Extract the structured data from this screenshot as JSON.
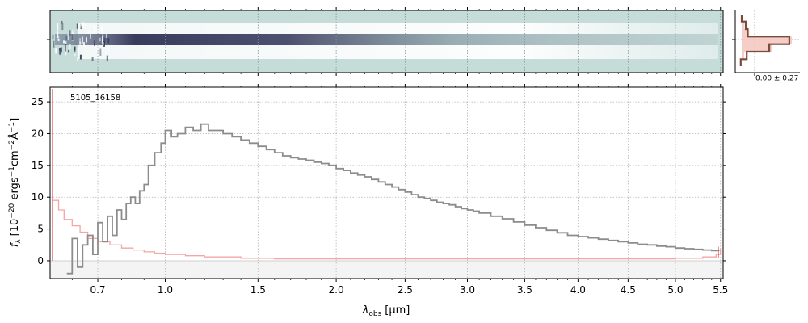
{
  "chart_data": [
    {
      "panel": "2d-spectrum",
      "type": "heatmap",
      "colormap": "bone_r",
      "background_color": "#c5dcd9",
      "trace_color": "#3a3d5e",
      "xlim": [
        0.6,
        5.5
      ]
    },
    {
      "panel": "cross-dispersion-profile",
      "type": "line",
      "annotation": "0.00 ± 0.27",
      "profile_color": "#7a4a3a",
      "fill_color": "#f5c6be",
      "y_offsets": [
        -3,
        -2,
        -1,
        0,
        1,
        2,
        3
      ],
      "model_profile": [
        0.02,
        0.05,
        0.15,
        1.0,
        0.6,
        0.05,
        0.0
      ],
      "data_profile": [
        0.0,
        0.08,
        0.12,
        0.95,
        0.55,
        0.1,
        -0.02
      ]
    },
    {
      "panel": "1d-spectrum",
      "type": "line",
      "object_label": "5105_16158",
      "xlabel_main": "λ",
      "xlabel_sub": "obs",
      "xlabel_unit": "[μm]",
      "ylabel": "f_λ [10^-20 ergs^-1 cm^-2 Å^-1]",
      "ylabel_parts": {
        "sym": "f",
        "sym_sub": "λ",
        "pre": "[10",
        "exp1": "−20",
        "mid1": " ergs",
        "exp2": "−1",
        "mid2": "cm",
        "exp3": "−2",
        "mid3": "Å",
        "exp4": "−1",
        "post": "]"
      },
      "xscale": "sqrt",
      "xlim": [
        0.52,
        5.53
      ],
      "ylim": [
        -2.8,
        27.3
      ],
      "xticks": [
        0.7,
        1.0,
        1.5,
        2.0,
        2.5,
        3.0,
        3.5,
        4.0,
        4.5,
        5.0,
        5.5
      ],
      "xtick_labels": [
        "0.7",
        "1.0",
        "1.5",
        "2.0",
        "2.5",
        "3.0",
        "3.5",
        "4.0",
        "4.5",
        "5.0",
        "5.5"
      ],
      "yticks": [
        0,
        5,
        10,
        15,
        20,
        25
      ],
      "ytick_labels": [
        "0",
        "5",
        "10",
        "15",
        "20",
        "25"
      ],
      "grid": true,
      "series": [
        {
          "role": "flux",
          "color": "#8c8c8c",
          "x": [
            0.58,
            0.6,
            0.62,
            0.64,
            0.66,
            0.68,
            0.7,
            0.72,
            0.74,
            0.76,
            0.78,
            0.8,
            0.82,
            0.84,
            0.86,
            0.88,
            0.9,
            0.92,
            0.95,
            0.98,
            1.0,
            1.03,
            1.06,
            1.1,
            1.14,
            1.18,
            1.22,
            1.26,
            1.3,
            1.35,
            1.4,
            1.45,
            1.5,
            1.55,
            1.6,
            1.65,
            1.7,
            1.75,
            1.8,
            1.85,
            1.9,
            1.95,
            2.0,
            2.05,
            2.1,
            2.15,
            2.2,
            2.25,
            2.3,
            2.35,
            2.4,
            2.45,
            2.5,
            2.55,
            2.6,
            2.65,
            2.7,
            2.75,
            2.8,
            2.85,
            2.9,
            2.95,
            3.0,
            3.05,
            3.1,
            3.2,
            3.3,
            3.4,
            3.5,
            3.6,
            3.7,
            3.8,
            3.9,
            4.0,
            4.1,
            4.2,
            4.3,
            4.4,
            4.5,
            4.6,
            4.7,
            4.8,
            4.9,
            5.0,
            5.1,
            5.2,
            5.3,
            5.4,
            5.48
          ],
          "y": [
            -2.0,
            3.5,
            -1.0,
            2.5,
            4.0,
            1.0,
            6.0,
            3.0,
            7.0,
            4.0,
            8.0,
            6.5,
            9.0,
            10.0,
            9.0,
            11.0,
            12.0,
            15.0,
            17.0,
            18.5,
            20.5,
            19.5,
            20.0,
            21.0,
            20.5,
            21.5,
            20.5,
            20.5,
            20.0,
            19.5,
            19.0,
            18.5,
            18.0,
            17.5,
            17.0,
            16.5,
            16.2,
            16.0,
            15.8,
            15.5,
            15.3,
            15.0,
            14.5,
            14.2,
            13.8,
            13.5,
            13.2,
            12.8,
            12.4,
            12.0,
            11.6,
            11.2,
            10.8,
            10.4,
            10.0,
            9.8,
            9.5,
            9.2,
            9.0,
            8.8,
            8.5,
            8.2,
            8.0,
            7.8,
            7.5,
            7.0,
            6.6,
            6.1,
            5.6,
            5.2,
            4.8,
            4.4,
            4.0,
            3.8,
            3.6,
            3.4,
            3.2,
            3.0,
            2.8,
            2.6,
            2.5,
            2.3,
            2.2,
            2.0,
            1.9,
            1.8,
            1.7,
            1.6,
            1.5
          ]
        },
        {
          "role": "uncertainty",
          "color": "#f2a6a6",
          "x": [
            0.53,
            0.55,
            0.57,
            0.6,
            0.63,
            0.66,
            0.7,
            0.75,
            0.8,
            0.85,
            0.9,
            0.95,
            1.0,
            1.1,
            1.2,
            1.4,
            1.6,
            2.0,
            2.5,
            3.0,
            3.5,
            4.0,
            4.5,
            5.0,
            5.3,
            5.45,
            5.5
          ],
          "y": [
            9.5,
            8.0,
            6.5,
            5.5,
            4.5,
            3.5,
            3.0,
            2.5,
            2.0,
            1.7,
            1.4,
            1.2,
            1.0,
            0.8,
            0.6,
            0.4,
            0.3,
            0.3,
            0.3,
            0.3,
            0.3,
            0.3,
            0.3,
            0.4,
            0.6,
            1.0,
            2.0
          ]
        }
      ]
    }
  ]
}
